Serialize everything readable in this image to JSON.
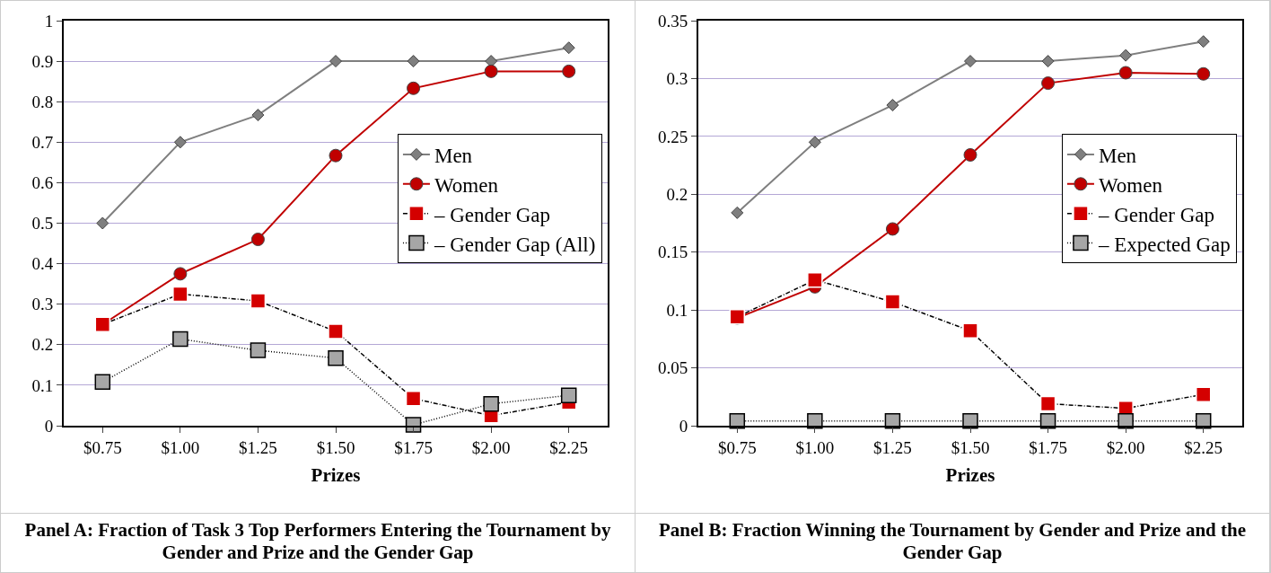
{
  "chart_data": [
    {
      "type": "line",
      "title": "Panel A: Fraction of Task 3 Top Performers Entering the Tournament by Gender and Prize and the Gender Gap",
      "xlabel": "Prizes",
      "categories": [
        "$0.75",
        "$1.00",
        "$1.25",
        "$1.50",
        "$1.75",
        "$2.00",
        "$2.25"
      ],
      "series": [
        {
          "name": "Men",
          "color": "#7f7f7f",
          "marker": "diamond",
          "line_style": "solid",
          "values": [
            0.5,
            0.7,
            0.767,
            0.9,
            0.9,
            0.9,
            0.933
          ]
        },
        {
          "name": "Women",
          "color": "#c00000",
          "marker": "circle",
          "line_style": "solid",
          "values": [
            0.25,
            0.375,
            0.46,
            0.667,
            0.833,
            0.875,
            0.875
          ]
        },
        {
          "name": "– Gender Gap",
          "color": "#d40000",
          "marker": "square",
          "line_style": "dashed",
          "values": [
            0.25,
            0.325,
            0.308,
            0.233,
            0.067,
            0.025,
            0.058
          ]
        },
        {
          "name": "– Gender Gap (All)",
          "color": "#a6a6a6",
          "marker": "square",
          "line_style": "dotted",
          "values": [
            0.108,
            0.214,
            0.186,
            0.167,
            0.002,
            0.054,
            0.075
          ]
        }
      ],
      "ylim": [
        0,
        1
      ],
      "yticks": [
        0,
        0.1,
        0.2,
        0.3,
        0.4,
        0.5,
        0.6,
        0.7,
        0.8,
        0.9,
        1
      ],
      "grid": "y",
      "legend": "right"
    },
    {
      "type": "line",
      "title": "Panel B: Fraction Winning the Tournament by Gender and Prize and the Gender Gap",
      "xlabel": "Prizes",
      "categories": [
        "$0.75",
        "$1.00",
        "$1.25",
        "$1.50",
        "$1.75",
        "$2.00",
        "$2.25"
      ],
      "series": [
        {
          "name": "Men",
          "color": "#7f7f7f",
          "marker": "diamond",
          "line_style": "solid",
          "values": [
            0.184,
            0.245,
            0.277,
            0.315,
            0.315,
            0.32,
            0.332
          ]
        },
        {
          "name": "Women",
          "color": "#c00000",
          "marker": "circle",
          "line_style": "solid",
          "values": [
            0.093,
            0.12,
            0.17,
            0.234,
            0.296,
            0.305,
            0.304
          ]
        },
        {
          "name": "– Gender Gap",
          "color": "#d40000",
          "marker": "square",
          "line_style": "dashed",
          "values": [
            0.094,
            0.126,
            0.107,
            0.082,
            0.019,
            0.015,
            0.027
          ]
        },
        {
          "name": "– Expected Gap",
          "color": "#a6a6a6",
          "marker": "square",
          "line_style": "dotted",
          "values": [
            0.004,
            0.004,
            0.004,
            0.004,
            0.004,
            0.004,
            0.004
          ]
        }
      ],
      "ylim": [
        0,
        0.35
      ],
      "yticks": [
        0,
        0.05,
        0.1,
        0.15,
        0.2,
        0.25,
        0.3,
        0.35
      ],
      "grid": "y",
      "legend": "right"
    }
  ]
}
